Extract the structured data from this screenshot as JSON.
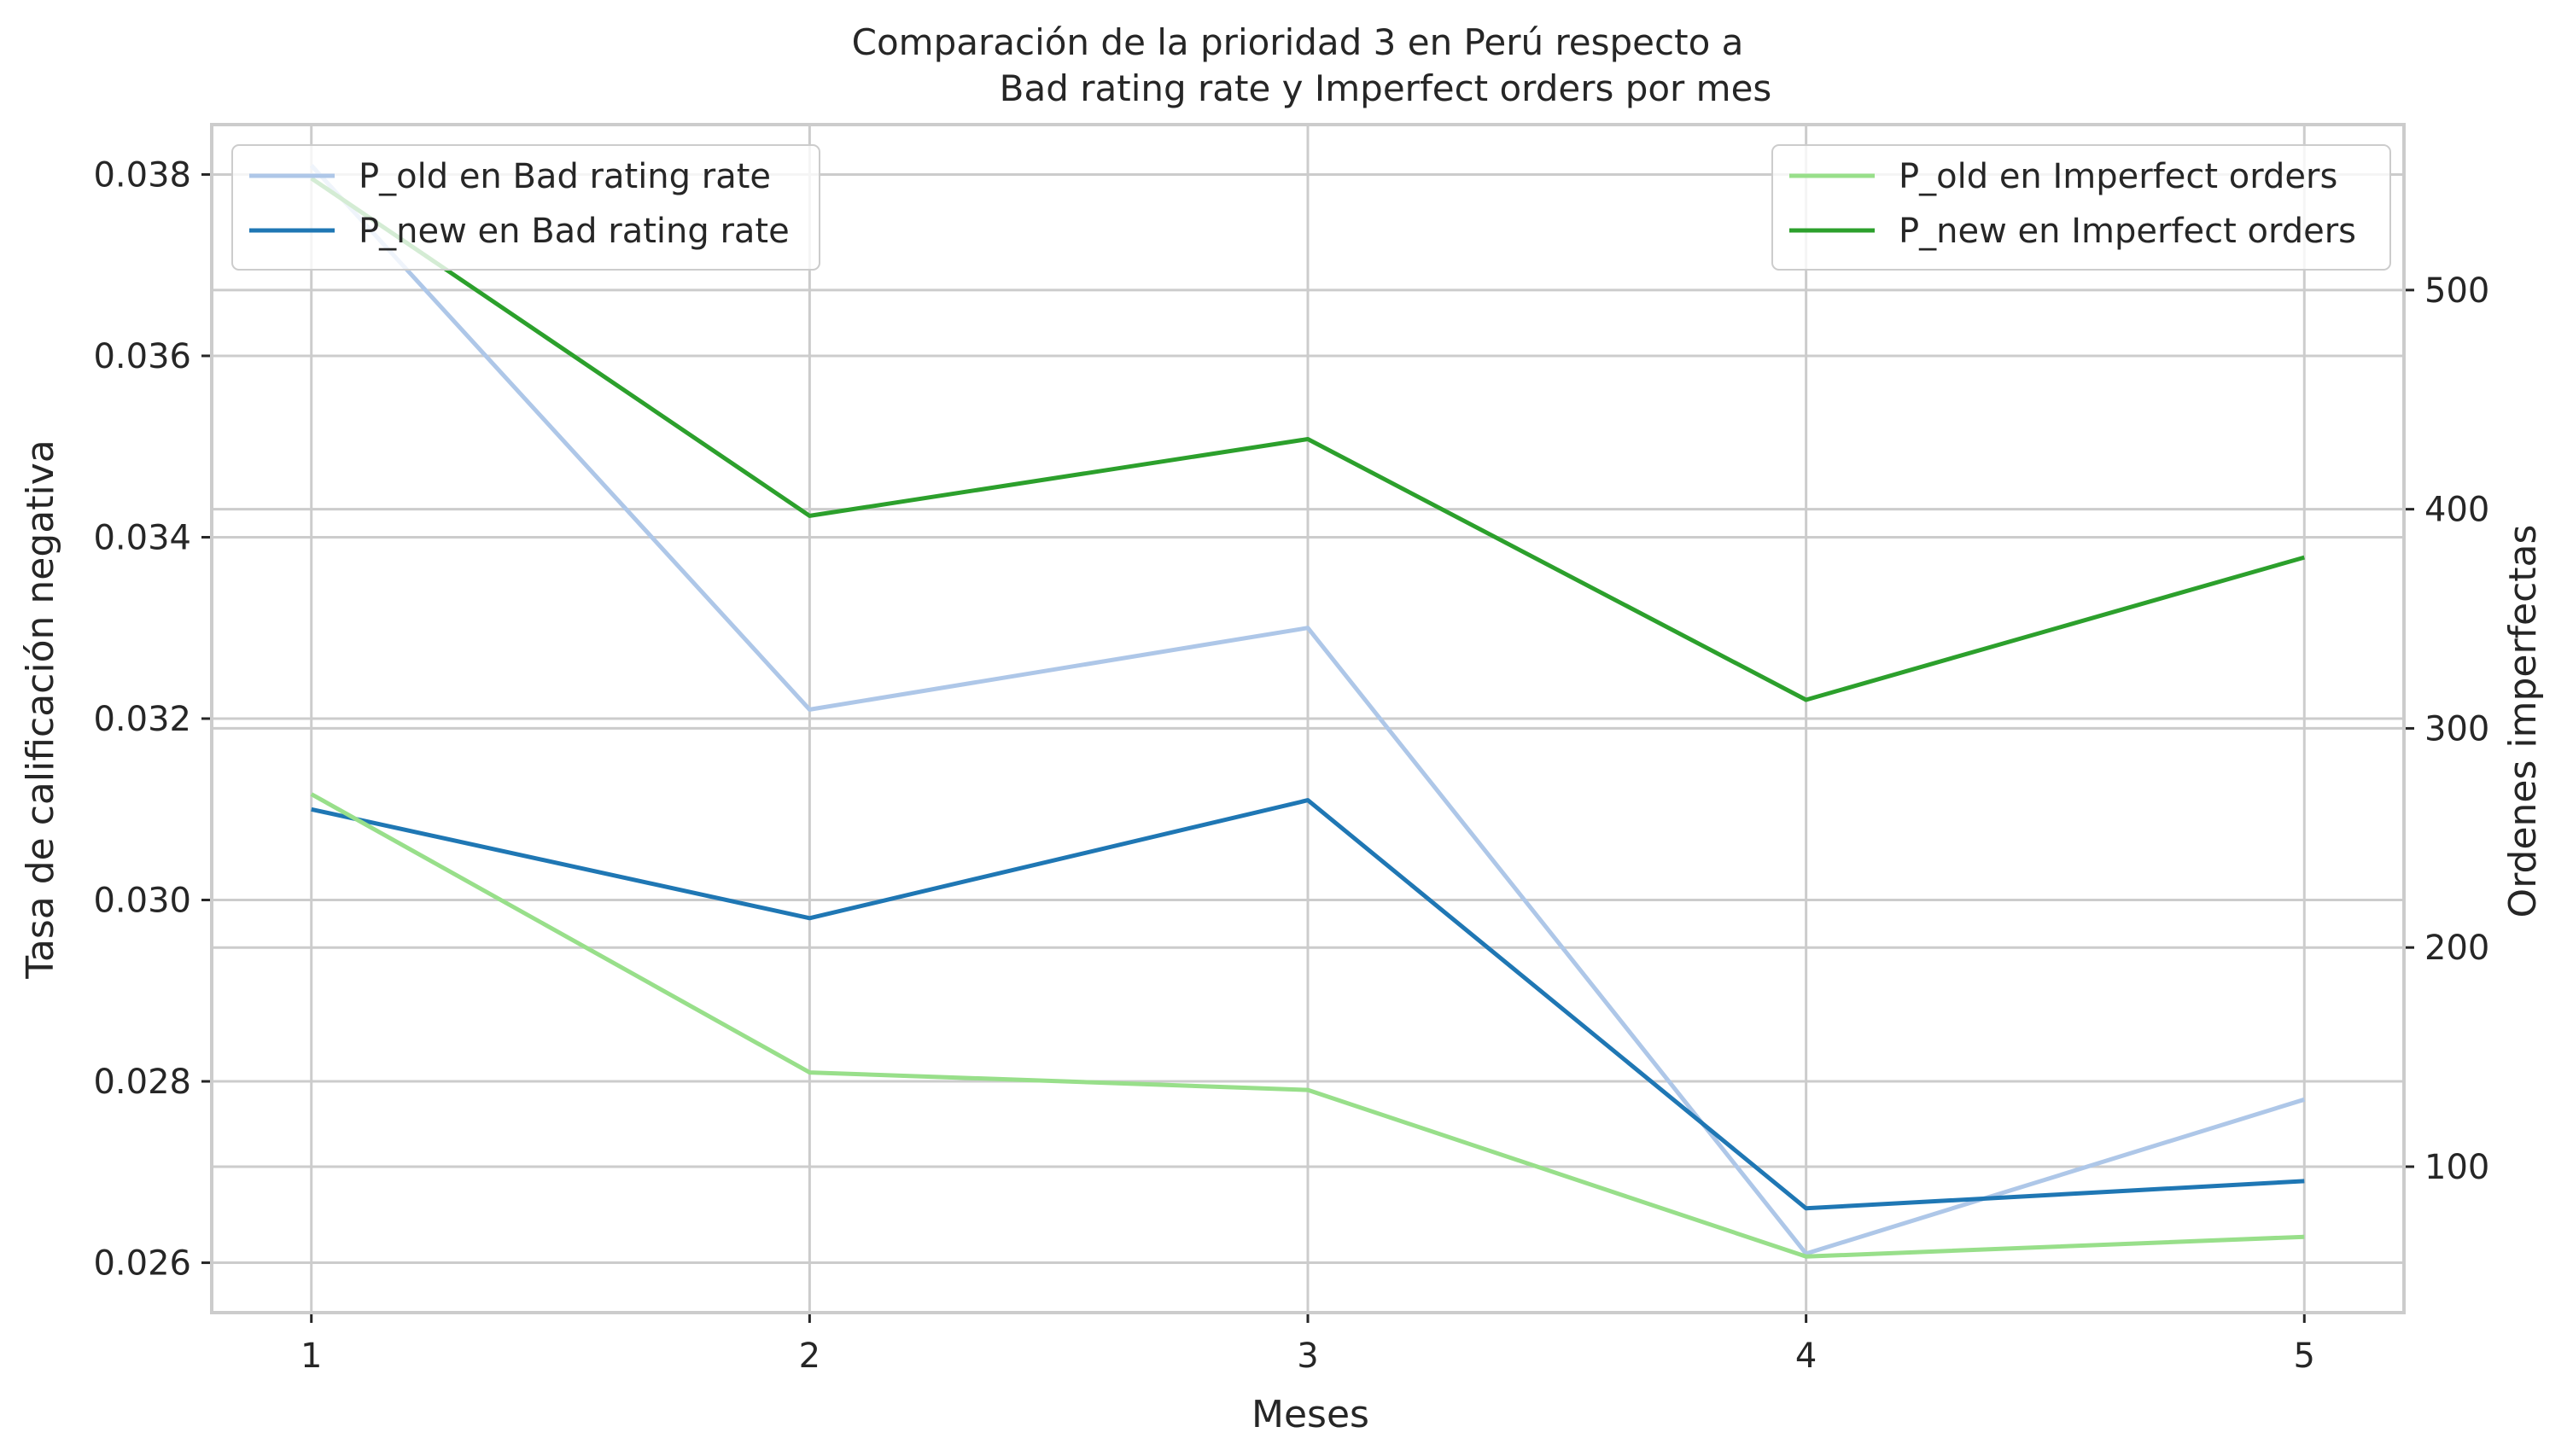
{
  "chart_data": {
    "type": "line",
    "title_line1": "Comparación de la prioridad 3 en Perú respecto a",
    "title_line2": "Bad rating rate y Imperfect orders por mes",
    "xlabel": "Meses",
    "ylabel_left": "Tasa de calificación negativa",
    "ylabel_right": "Ordenes imperfectas",
    "x": [
      1,
      2,
      3,
      4,
      5
    ],
    "x_tick_labels": [
      "1",
      "2",
      "3",
      "4",
      "5"
    ],
    "xlim": [
      0.8,
      5.2
    ],
    "left_axis": {
      "ylim": [
        0.02545,
        0.03855
      ],
      "ticks": [
        0.026,
        0.028,
        0.03,
        0.032,
        0.034,
        0.036,
        0.038
      ],
      "tick_labels": [
        "0.026",
        "0.028",
        "0.030",
        "0.032",
        "0.034",
        "0.036",
        "0.038"
      ]
    },
    "right_axis": {
      "ylim": [
        33.4,
        575.5
      ],
      "ticks": [
        100,
        200,
        300,
        400,
        500
      ],
      "tick_labels": [
        "100",
        "200",
        "300",
        "400",
        "500"
      ]
    },
    "series": [
      {
        "name": "P_old en Bad rating rate",
        "axis": "left",
        "color": "#aec7e8",
        "values": [
          0.0381,
          0.0321,
          0.033,
          0.0261,
          0.0278
        ]
      },
      {
        "name": "P_new en Bad rating rate",
        "axis": "left",
        "color": "#1f77b4",
        "values": [
          0.031,
          0.0298,
          0.0311,
          0.0266,
          0.0269
        ]
      },
      {
        "name": "P_old en Imperfect orders",
        "axis": "right",
        "color": "#98df8a",
        "values": [
          270,
          143,
          135,
          59,
          68
        ]
      },
      {
        "name": "P_new en Imperfect orders",
        "axis": "right",
        "color": "#2ca02c",
        "values": [
          551,
          397,
          432,
          313,
          378
        ]
      }
    ],
    "legend_left_location": "upper left",
    "legend_right_location": "upper right",
    "grid": true
  }
}
